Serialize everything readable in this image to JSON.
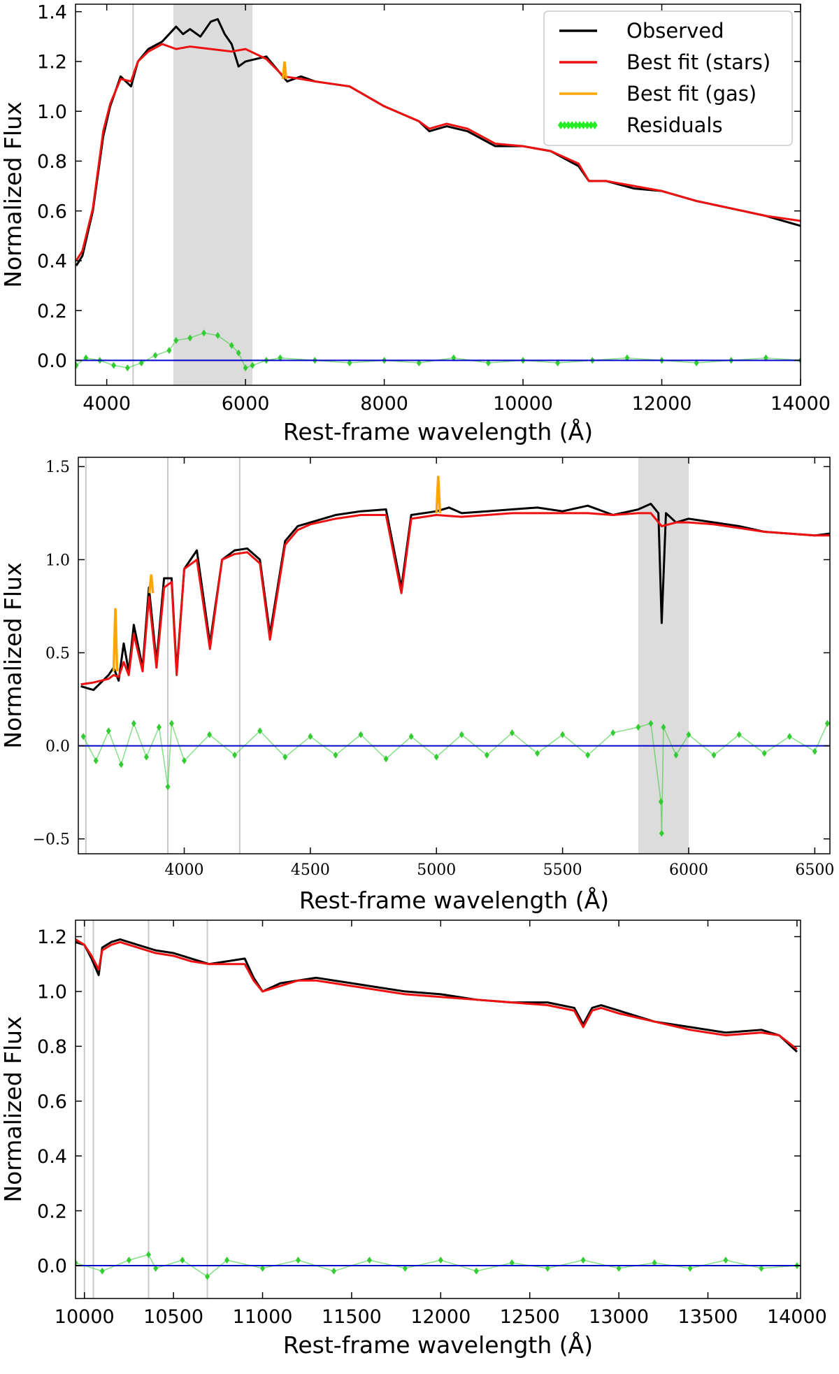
{
  "chart_data": [
    {
      "type": "line",
      "font": "sans",
      "xlabel": "Rest-frame wavelength (Å)",
      "ylabel": "Normalized Flux",
      "xlim": [
        3550,
        14000
      ],
      "ylim": [
        -0.1,
        1.43
      ],
      "xticks": [
        4000,
        6000,
        8000,
        10000,
        12000,
        14000
      ],
      "yticks": [
        0.0,
        0.2,
        0.4,
        0.6,
        0.8,
        1.0,
        1.2,
        1.4
      ],
      "ytick_labels": [
        "0.0",
        "0.2",
        "0.4",
        "0.6",
        "0.8",
        "1.0",
        "1.2",
        "1.4"
      ],
      "masked_regions": [
        [
          4960,
          6100
        ]
      ],
      "vlines": [
        4380
      ],
      "legend": {
        "position": "top-right",
        "entries": [
          {
            "label": "Observed",
            "color": "#000000",
            "marker": "line"
          },
          {
            "label": "Best fit (stars)",
            "color": "#ee1111",
            "marker": "line"
          },
          {
            "label": "Best fit (gas)",
            "color": "#ffa500",
            "marker": "line"
          },
          {
            "label": "Residuals",
            "color": "#33cc33",
            "marker": "diamonds"
          }
        ]
      },
      "series": [
        {
          "name": "Observed",
          "color": "#000000",
          "x": [
            3560,
            3650,
            3800,
            3950,
            4050,
            4200,
            4350,
            4450,
            4600,
            4800,
            5000,
            5100,
            5200,
            5350,
            5500,
            5600,
            5700,
            5800,
            5900,
            6000,
            6300,
            6600,
            6800,
            7000,
            7500,
            8000,
            8500,
            8650,
            8900,
            9200,
            9600,
            10000,
            10400,
            10800,
            10950,
            11200,
            11600,
            12000,
            12500,
            13000,
            13500,
            14000
          ],
          "y": [
            0.38,
            0.42,
            0.6,
            0.9,
            1.02,
            1.14,
            1.1,
            1.2,
            1.25,
            1.28,
            1.34,
            1.31,
            1.33,
            1.3,
            1.36,
            1.37,
            1.31,
            1.27,
            1.18,
            1.2,
            1.22,
            1.12,
            1.14,
            1.12,
            1.1,
            1.02,
            0.96,
            0.92,
            0.94,
            0.92,
            0.86,
            0.86,
            0.84,
            0.78,
            0.72,
            0.72,
            0.69,
            0.68,
            0.64,
            0.61,
            0.58,
            0.54
          ]
        },
        {
          "name": "Best fit (stars)",
          "color": "#ee1111",
          "x": [
            3560,
            3650,
            3800,
            3950,
            4050,
            4200,
            4350,
            4450,
            4600,
            4800,
            5000,
            5200,
            5500,
            5800,
            6000,
            6300,
            6550,
            6800,
            7000,
            7500,
            8000,
            8500,
            8650,
            8900,
            9200,
            9600,
            10000,
            10400,
            10800,
            10950,
            11200,
            11600,
            12000,
            12500,
            13000,
            13500,
            14000
          ],
          "y": [
            0.4,
            0.44,
            0.61,
            0.92,
            1.03,
            1.13,
            1.12,
            1.2,
            1.24,
            1.27,
            1.25,
            1.26,
            1.25,
            1.24,
            1.25,
            1.21,
            1.14,
            1.13,
            1.12,
            1.1,
            1.02,
            0.96,
            0.93,
            0.95,
            0.93,
            0.87,
            0.86,
            0.84,
            0.79,
            0.72,
            0.72,
            0.7,
            0.68,
            0.64,
            0.61,
            0.58,
            0.56
          ]
        },
        {
          "name": "Best fit (gas)",
          "color": "#ffa500",
          "x": [
            6540,
            6563,
            6586
          ],
          "y": [
            1.13,
            1.2,
            1.13
          ]
        },
        {
          "name": "Residuals",
          "color": "#33cc33",
          "x": [
            3560,
            3700,
            3900,
            4100,
            4300,
            4500,
            4700,
            4900,
            5000,
            5200,
            5400,
            5600,
            5800,
            5900,
            6000,
            6100,
            6300,
            6500,
            7000,
            7500,
            8000,
            8500,
            9000,
            9500,
            10000,
            10500,
            11000,
            11500,
            12000,
            12500,
            13000,
            13500,
            14000
          ],
          "y": [
            -0.02,
            0.01,
            0.0,
            -0.02,
            -0.03,
            -0.01,
            0.02,
            0.04,
            0.08,
            0.09,
            0.11,
            0.1,
            0.06,
            0.03,
            -0.03,
            -0.02,
            0.0,
            0.01,
            0.0,
            -0.01,
            0.0,
            -0.01,
            0.01,
            -0.01,
            0.0,
            -0.01,
            0.0,
            0.01,
            0.0,
            -0.01,
            0.0,
            0.01,
            0.0
          ]
        },
        {
          "name": "Zero",
          "color": "#0000cc",
          "x": [
            3550,
            14000
          ],
          "y": [
            0.0,
            0.0
          ]
        }
      ]
    },
    {
      "type": "line",
      "font": "serif",
      "xlabel": "Rest-frame wavelength (Å)",
      "ylabel": "Normalized Flux",
      "xlim": [
        3580,
        6560
      ],
      "ylim": [
        -0.58,
        1.55
      ],
      "xticks": [
        4000,
        4500,
        5000,
        5500,
        6000,
        6500
      ],
      "yticks": [
        -0.5,
        0.0,
        0.5,
        1.0,
        1.5
      ],
      "ytick_labels": [
        "−0.5",
        "0.0",
        "0.5",
        "1.0",
        "1.5"
      ],
      "masked_regions": [
        [
          5800,
          6000
        ]
      ],
      "vlines": [
        3610,
        3935,
        4220
      ],
      "series": [
        {
          "name": "Observed",
          "color": "#000000",
          "x": [
            3590,
            3640,
            3700,
            3720,
            3740,
            3760,
            3780,
            3800,
            3835,
            3860,
            3890,
            3920,
            3950,
            3970,
            4000,
            4050,
            4102,
            4150,
            4200,
            4250,
            4300,
            4340,
            4400,
            4450,
            4500,
            4600,
            4700,
            4800,
            4861,
            4900,
            5000,
            5050,
            5100,
            5200,
            5300,
            5400,
            5500,
            5600,
            5700,
            5800,
            5850,
            5880,
            5893,
            5910,
            5950,
            6000,
            6100,
            6200,
            6300,
            6400,
            6500,
            6560
          ],
          "y": [
            0.32,
            0.3,
            0.38,
            0.42,
            0.35,
            0.55,
            0.4,
            0.65,
            0.42,
            0.85,
            0.45,
            0.9,
            0.9,
            0.4,
            0.95,
            1.05,
            0.55,
            1.0,
            1.05,
            1.06,
            1.0,
            0.6,
            1.1,
            1.18,
            1.2,
            1.24,
            1.26,
            1.27,
            0.85,
            1.24,
            1.26,
            1.28,
            1.25,
            1.26,
            1.27,
            1.28,
            1.26,
            1.29,
            1.24,
            1.27,
            1.3,
            1.25,
            0.66,
            1.25,
            1.2,
            1.22,
            1.2,
            1.18,
            1.15,
            1.14,
            1.13,
            1.14
          ]
        },
        {
          "name": "Best fit (stars)",
          "color": "#ee1111",
          "x": [
            3590,
            3640,
            3700,
            3720,
            3740,
            3760,
            3780,
            3800,
            3835,
            3860,
            3890,
            3920,
            3950,
            3970,
            4000,
            4050,
            4102,
            4150,
            4200,
            4250,
            4300,
            4340,
            4400,
            4450,
            4500,
            4600,
            4700,
            4800,
            4861,
            4900,
            5000,
            5100,
            5200,
            5300,
            5400,
            5500,
            5600,
            5700,
            5800,
            5850,
            5893,
            5950,
            6000,
            6100,
            6200,
            6300,
            6400,
            6500,
            6560
          ],
          "y": [
            0.33,
            0.34,
            0.36,
            0.38,
            0.37,
            0.45,
            0.38,
            0.6,
            0.4,
            0.8,
            0.42,
            0.85,
            0.88,
            0.38,
            0.95,
            1.0,
            0.52,
            1.0,
            1.03,
            1.04,
            0.98,
            0.57,
            1.08,
            1.16,
            1.19,
            1.22,
            1.24,
            1.24,
            0.82,
            1.22,
            1.24,
            1.23,
            1.24,
            1.25,
            1.25,
            1.25,
            1.25,
            1.24,
            1.25,
            1.25,
            1.18,
            1.2,
            1.2,
            1.19,
            1.17,
            1.15,
            1.14,
            1.13,
            1.13
          ]
        },
        {
          "name": "Best fit (gas)",
          "color": "#ffa500",
          "x": [
            3720,
            3727,
            3734,
            3862,
            3869,
            3876,
            5000,
            5007,
            5014
          ],
          "y": [
            0.4,
            0.74,
            0.4,
            0.82,
            0.92,
            0.82,
            1.25,
            1.45,
            1.25
          ]
        },
        {
          "name": "Residuals",
          "color": "#33cc33",
          "x": [
            3600,
            3650,
            3700,
            3750,
            3800,
            3850,
            3900,
            3935,
            3950,
            4000,
            4100,
            4200,
            4300,
            4400,
            4500,
            4600,
            4700,
            4800,
            4900,
            5000,
            5100,
            5200,
            5300,
            5400,
            5500,
            5600,
            5700,
            5800,
            5850,
            5890,
            5893,
            5900,
            5950,
            6000,
            6100,
            6200,
            6300,
            6400,
            6500,
            6550
          ],
          "y": [
            0.05,
            -0.08,
            0.08,
            -0.1,
            0.12,
            -0.06,
            0.1,
            -0.22,
            0.12,
            -0.08,
            0.06,
            -0.05,
            0.08,
            -0.06,
            0.05,
            -0.05,
            0.06,
            -0.07,
            0.05,
            -0.06,
            0.06,
            -0.05,
            0.07,
            -0.04,
            0.06,
            -0.05,
            0.07,
            0.1,
            0.12,
            -0.3,
            -0.47,
            0.1,
            -0.05,
            0.06,
            -0.05,
            0.06,
            -0.04,
            0.05,
            -0.03,
            0.12
          ]
        },
        {
          "name": "Zero",
          "color": "#0000cc",
          "x": [
            3580,
            6560
          ],
          "y": [
            0.0,
            0.0
          ]
        }
      ]
    },
    {
      "type": "line",
      "font": "sans",
      "xlabel": "Rest-frame wavelength (Å)",
      "ylabel": "Normalized Flux",
      "xlim": [
        9950,
        14020
      ],
      "ylim": [
        -0.12,
        1.26
      ],
      "xticks": [
        10000,
        10500,
        11000,
        11500,
        12000,
        12500,
        13000,
        13500,
        14000
      ],
      "yticks": [
        0.0,
        0.2,
        0.4,
        0.6,
        0.8,
        1.0,
        1.2
      ],
      "ytick_labels": [
        "0.0",
        "0.2",
        "0.4",
        "0.6",
        "0.8",
        "1.0",
        "1.2"
      ],
      "masked_regions": [],
      "vlines": [
        10000,
        10050,
        10360,
        10690
      ],
      "series": [
        {
          "name": "Observed",
          "color": "#000000",
          "x": [
            9950,
            10000,
            10040,
            10080,
            10100,
            10150,
            10200,
            10300,
            10400,
            10500,
            10600,
            10700,
            10800,
            10900,
            10950,
            11000,
            11100,
            11200,
            11300,
            11400,
            11500,
            11600,
            11800,
            12000,
            12200,
            12400,
            12600,
            12750,
            12800,
            12850,
            12900,
            13000,
            13200,
            13400,
            13600,
            13800,
            13900,
            14000
          ],
          "y": [
            1.18,
            1.17,
            1.12,
            1.06,
            1.16,
            1.18,
            1.19,
            1.17,
            1.15,
            1.14,
            1.12,
            1.1,
            1.11,
            1.12,
            1.05,
            1.0,
            1.03,
            1.04,
            1.05,
            1.04,
            1.03,
            1.02,
            1.0,
            0.99,
            0.97,
            0.96,
            0.96,
            0.94,
            0.88,
            0.94,
            0.95,
            0.93,
            0.89,
            0.87,
            0.85,
            0.86,
            0.84,
            0.78
          ]
        },
        {
          "name": "Best fit (stars)",
          "color": "#ee1111",
          "x": [
            9950,
            10000,
            10040,
            10080,
            10100,
            10150,
            10200,
            10300,
            10400,
            10500,
            10600,
            10700,
            10800,
            10900,
            10950,
            11000,
            11100,
            11200,
            11300,
            11400,
            11500,
            11600,
            11800,
            12000,
            12200,
            12400,
            12600,
            12750,
            12800,
            12850,
            12900,
            13000,
            13200,
            13400,
            13600,
            13800,
            13900,
            14000
          ],
          "y": [
            1.19,
            1.17,
            1.13,
            1.08,
            1.15,
            1.17,
            1.18,
            1.16,
            1.14,
            1.13,
            1.11,
            1.1,
            1.1,
            1.1,
            1.04,
            1.0,
            1.02,
            1.04,
            1.04,
            1.03,
            1.02,
            1.01,
            0.99,
            0.98,
            0.97,
            0.96,
            0.95,
            0.93,
            0.87,
            0.93,
            0.94,
            0.92,
            0.89,
            0.86,
            0.84,
            0.85,
            0.84,
            0.79
          ]
        },
        {
          "name": "Residuals",
          "color": "#33cc33",
          "x": [
            9950,
            10100,
            10250,
            10360,
            10400,
            10550,
            10690,
            10800,
            11000,
            11200,
            11400,
            11600,
            11800,
            12000,
            12200,
            12400,
            12600,
            12800,
            13000,
            13200,
            13400,
            13600,
            13800,
            14000
          ],
          "y": [
            0.01,
            -0.02,
            0.02,
            0.04,
            -0.01,
            0.02,
            -0.04,
            0.02,
            -0.01,
            0.02,
            -0.02,
            0.02,
            -0.01,
            0.02,
            -0.02,
            0.01,
            -0.01,
            0.02,
            -0.01,
            0.01,
            -0.01,
            0.02,
            -0.01,
            0.0
          ]
        },
        {
          "name": "Zero",
          "color": "#0000cc",
          "x": [
            9950,
            14020
          ],
          "y": [
            0.0,
            0.0
          ]
        }
      ]
    }
  ]
}
